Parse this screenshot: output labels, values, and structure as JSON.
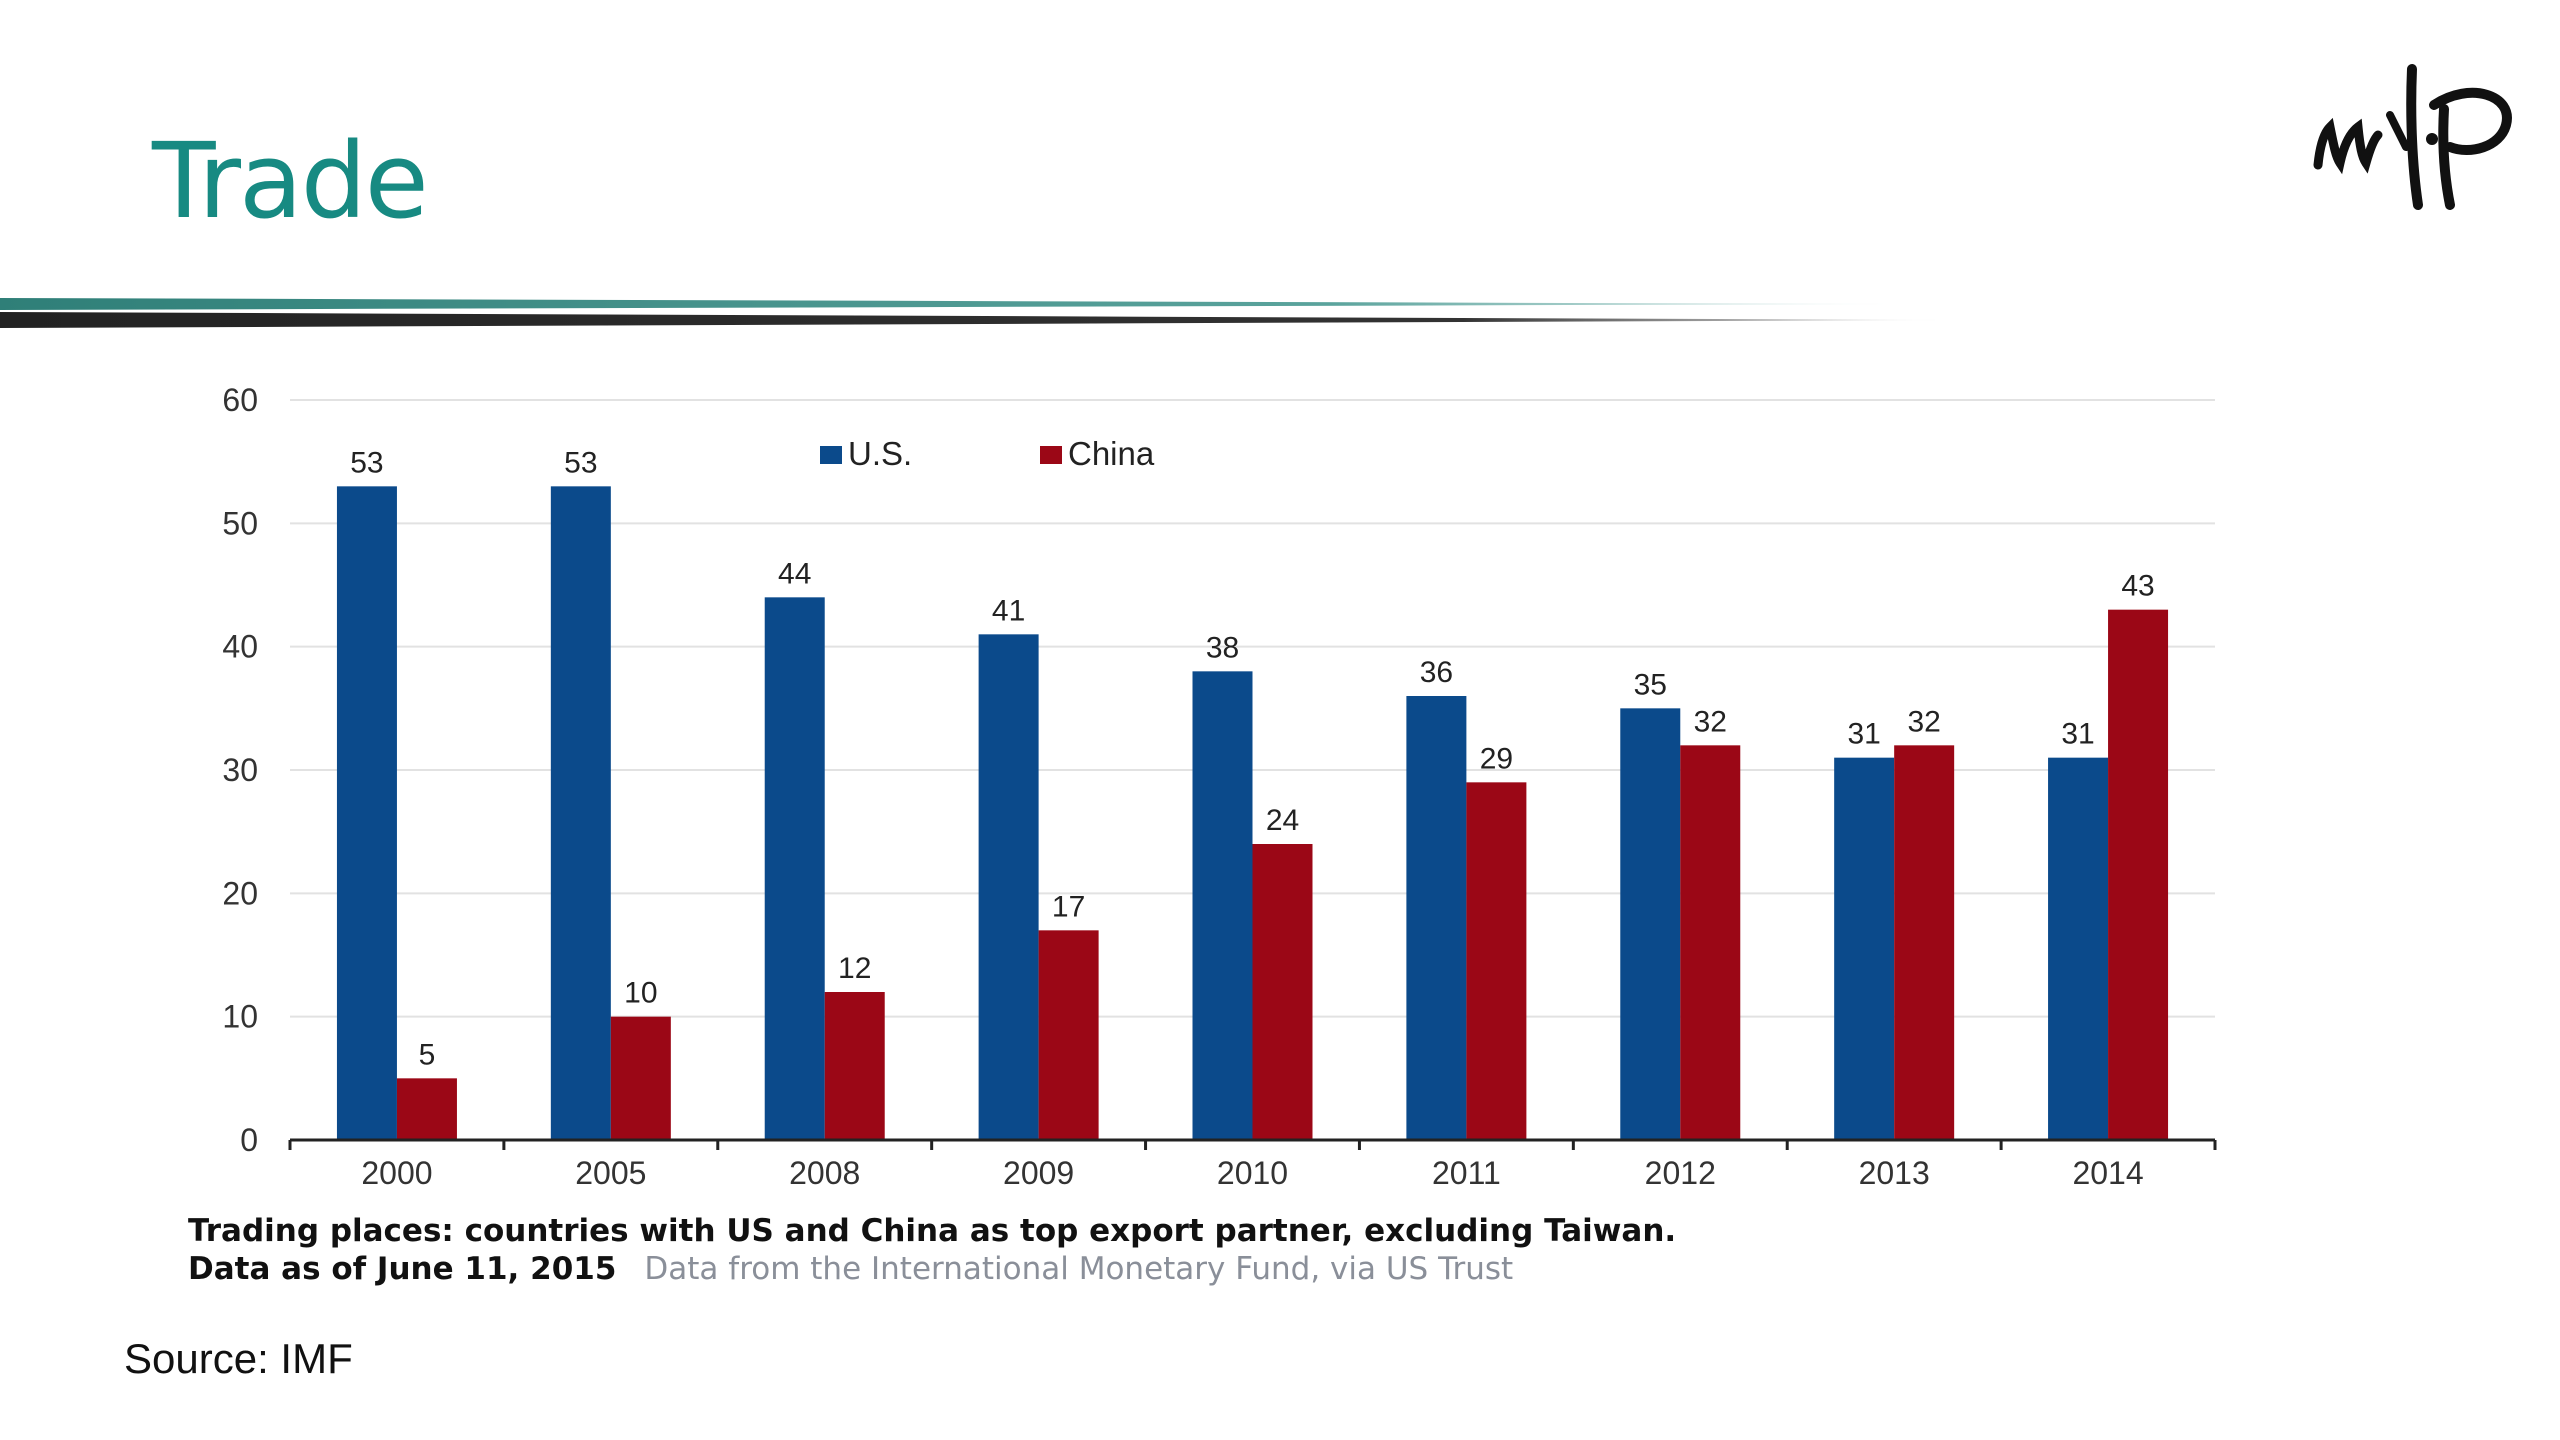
{
  "slide": {
    "title": "Trade",
    "source": "Source: IMF",
    "caption_line1": "Trading places: countries with US and China as top export partner, excluding Taiwan.",
    "caption_line2": "Data as of June 11, 2015",
    "caption_credit": "Data from the International Monetary Fund, via US Trust"
  },
  "colors": {
    "title": "#178a82",
    "us": "#0b4a8b",
    "china": "#9b0716"
  },
  "chart_data": {
    "type": "bar",
    "title": "",
    "xlabel": "",
    "ylabel": "",
    "categories": [
      "2000",
      "2005",
      "2008",
      "2009",
      "2010",
      "2011",
      "2012",
      "2013",
      "2014"
    ],
    "series": [
      {
        "name": "U.S.",
        "color": "#0b4a8b",
        "values": [
          53,
          53,
          44,
          41,
          38,
          36,
          35,
          31,
          31
        ]
      },
      {
        "name": "China",
        "color": "#9b0716",
        "values": [
          5,
          10,
          12,
          17,
          24,
          29,
          32,
          32,
          43
        ]
      }
    ],
    "ylim": [
      0,
      60
    ],
    "yticks": [
      0,
      10,
      20,
      30,
      40,
      50,
      60
    ],
    "grid": true,
    "legend": "top-center",
    "data_labels": true
  }
}
